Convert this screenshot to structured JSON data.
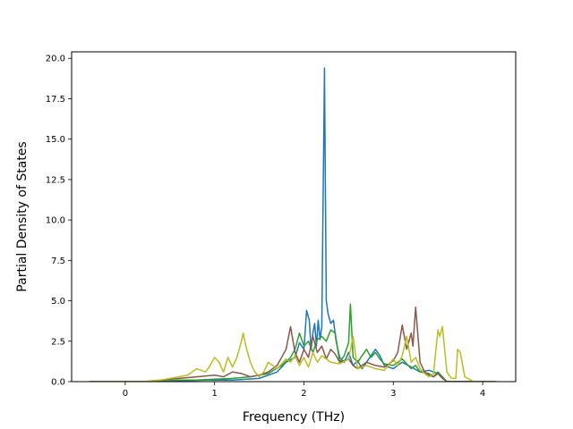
{
  "chart_data": {
    "type": "line",
    "title": "",
    "xlabel": "Frequency (THz)",
    "ylabel": "Partial Density of States",
    "xlim": [
      -0.6,
      4.37
    ],
    "ylim": [
      0,
      20.4
    ],
    "xticks": [
      0,
      1,
      2,
      3,
      4
    ],
    "xtick_labels": [
      "0",
      "1",
      "2",
      "3",
      "4"
    ],
    "yticks": [
      0,
      2.5,
      5,
      7.5,
      10,
      12.5,
      15,
      17.5,
      20
    ],
    "ytick_labels": [
      "0.0",
      "2.5",
      "5.0",
      "7.5",
      "10.0",
      "12.5",
      "15.0",
      "17.5",
      "20.0"
    ],
    "grid": false,
    "legend": "none",
    "series": [
      {
        "color": "#1f77b4",
        "x": [
          -0.4,
          0.2,
          0.6,
          0.9,
          1.2,
          1.5,
          1.7,
          1.8,
          1.9,
          1.95,
          2.0,
          2.03,
          2.06,
          2.08,
          2.1,
          2.12,
          2.14,
          2.16,
          2.18,
          2.2,
          2.21,
          2.22,
          2.23,
          2.24,
          2.25,
          2.27,
          2.3,
          2.33,
          2.36,
          2.4,
          2.45,
          2.5,
          2.55,
          2.6,
          2.65,
          2.7,
          2.75,
          2.8,
          2.85,
          2.9,
          3.0,
          3.1,
          3.2,
          3.3,
          3.4,
          3.5,
          3.55,
          3.6,
          3.7,
          3.8,
          3.9,
          4.0,
          4.15
        ],
        "y": [
          0,
          0,
          0.05,
          0.1,
          0.1,
          0.2,
          0.6,
          1.2,
          1.5,
          2.4,
          2.0,
          4.4,
          3.8,
          2.0,
          3.0,
          3.6,
          2.2,
          3.8,
          2.6,
          3.4,
          9.0,
          14.0,
          19.4,
          12.0,
          5.0,
          4.2,
          3.6,
          3.8,
          2.5,
          1.5,
          1.2,
          1.8,
          1.0,
          1.3,
          0.8,
          1.2,
          1.6,
          2.0,
          1.6,
          1.0,
          0.8,
          1.2,
          0.9,
          0.6,
          0.7,
          0.5,
          0.3,
          0,
          0,
          0,
          0,
          0,
          0
        ]
      },
      {
        "color": "#2ca02c",
        "x": [
          -0.4,
          0.3,
          0.6,
          0.8,
          1.0,
          1.2,
          1.4,
          1.6,
          1.75,
          1.85,
          1.9,
          1.95,
          2.0,
          2.05,
          2.1,
          2.15,
          2.2,
          2.25,
          2.3,
          2.35,
          2.4,
          2.45,
          2.5,
          2.52,
          2.55,
          2.6,
          2.65,
          2.7,
          2.75,
          2.8,
          2.85,
          2.9,
          3.0,
          3.1,
          3.2,
          3.25,
          3.3,
          3.4,
          3.45,
          3.5,
          3.55,
          3.6,
          3.7,
          3.75,
          3.8,
          3.9,
          4.0,
          4.15
        ],
        "y": [
          0,
          0,
          0.1,
          0.1,
          0.15,
          0.2,
          0.3,
          0.5,
          1.0,
          1.5,
          2.0,
          3.0,
          2.2,
          2.5,
          1.8,
          2.6,
          2.8,
          2.5,
          3.2,
          3.0,
          1.2,
          1.6,
          2.4,
          4.8,
          1.5,
          1.2,
          1.6,
          2.0,
          1.5,
          1.8,
          1.4,
          1.1,
          1.0,
          1.4,
          0.8,
          1.0,
          0.6,
          0.5,
          0.3,
          0.6,
          0.3,
          0,
          0,
          0,
          0,
          0,
          0,
          0
        ]
      },
      {
        "color": "#8c564b",
        "x": [
          -0.4,
          0.2,
          0.4,
          0.6,
          0.8,
          1.0,
          1.1,
          1.2,
          1.3,
          1.4,
          1.5,
          1.6,
          1.7,
          1.8,
          1.85,
          1.9,
          1.95,
          2.0,
          2.05,
          2.1,
          2.15,
          2.2,
          2.25,
          2.3,
          2.35,
          2.4,
          2.5,
          2.55,
          2.6,
          2.7,
          2.8,
          2.9,
          3.0,
          3.05,
          3.1,
          3.15,
          3.2,
          3.22,
          3.25,
          3.3,
          3.35,
          3.4,
          3.45,
          3.5,
          3.55,
          3.6,
          3.7,
          3.9,
          4.15
        ],
        "y": [
          0,
          0,
          0.1,
          0.2,
          0.3,
          0.4,
          0.3,
          0.6,
          0.5,
          0.3,
          0.4,
          0.6,
          1.0,
          2.0,
          3.4,
          1.8,
          1.2,
          2.0,
          1.5,
          2.8,
          1.8,
          2.2,
          1.4,
          2.0,
          1.7,
          1.2,
          1.4,
          1.0,
          0.8,
          1.2,
          1.0,
          0.9,
          1.3,
          1.8,
          3.5,
          2.0,
          3.0,
          2.2,
          4.6,
          1.2,
          0.6,
          0.4,
          0.3,
          0.5,
          0.2,
          0,
          0,
          0,
          0
        ]
      },
      {
        "color": "#bcbd22",
        "x": [
          -0.4,
          0.2,
          0.4,
          0.6,
          0.7,
          0.8,
          0.9,
          0.95,
          1.0,
          1.05,
          1.1,
          1.15,
          1.2,
          1.25,
          1.3,
          1.32,
          1.35,
          1.4,
          1.45,
          1.5,
          1.55,
          1.6,
          1.7,
          1.8,
          1.85,
          1.9,
          1.95,
          2.0,
          2.05,
          2.1,
          2.15,
          2.2,
          2.3,
          2.4,
          2.5,
          2.55,
          2.6,
          2.7,
          2.8,
          2.9,
          3.0,
          3.05,
          3.1,
          3.15,
          3.2,
          3.25,
          3.3,
          3.35,
          3.4,
          3.45,
          3.5,
          3.52,
          3.55,
          3.6,
          3.65,
          3.7,
          3.72,
          3.75,
          3.8,
          3.9,
          4.0,
          4.15
        ],
        "y": [
          0,
          0,
          0.1,
          0.3,
          0.4,
          0.8,
          0.6,
          1.0,
          1.5,
          1.2,
          0.6,
          1.5,
          0.9,
          1.5,
          2.5,
          3.0,
          2.2,
          1.2,
          0.6,
          0.3,
          0.6,
          1.2,
          0.8,
          1.4,
          1.2,
          1.6,
          1.0,
          1.5,
          0.9,
          1.8,
          1.2,
          1.6,
          1.2,
          1.1,
          1.4,
          2.8,
          0.8,
          1.0,
          0.8,
          0.7,
          1.4,
          1.0,
          1.6,
          2.8,
          1.2,
          1.5,
          0.8,
          0.5,
          0.3,
          0.5,
          3.2,
          2.8,
          3.4,
          0.6,
          0.2,
          0.2,
          2.0,
          1.8,
          0.3,
          0,
          0,
          0
        ]
      }
    ]
  }
}
